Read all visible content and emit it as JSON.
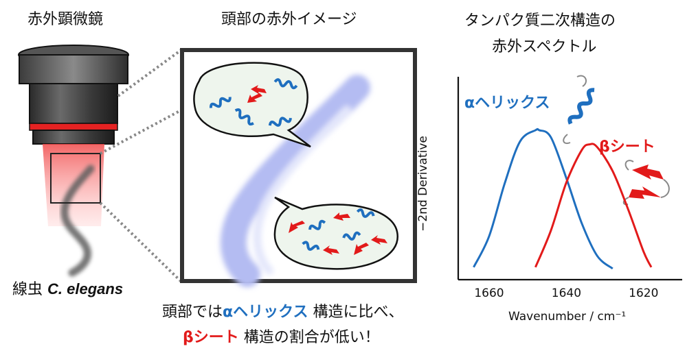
{
  "microscope": {
    "title": "赤外顕微鏡",
    "worm_label_prefix": "線虫",
    "worm_label_species": "C. elegans"
  },
  "head_image": {
    "title": "頭部の赤外イメージ"
  },
  "caption": {
    "line1_prefix": "頭部では",
    "line1_helix": "αヘリックス",
    "line1_suffix": " 構造に比べ、",
    "line2_sheet": "βシート",
    "line2_suffix": " 構造の割合が低い！"
  },
  "spectrum_panel": {
    "title_line1": "タンパク質二次構造の",
    "title_line2": "赤外スペクトル",
    "helix_label": "αヘリックス",
    "sheet_label": "βシート"
  },
  "colors": {
    "helix": "#1f6fbf",
    "sheet": "#e21a1a",
    "worm_ir": "#a9b2f0"
  },
  "chart_data": {
    "type": "line",
    "xlabel": "Wavenumber / cm⁻¹",
    "ylabel": "−2nd Derivative",
    "x_ticks": [
      "1660",
      "1640",
      "1620"
    ],
    "xlim": [
      1668,
      1610
    ],
    "series": [
      {
        "name": "αヘリックス",
        "color": "#1f6fbf",
        "x": [
          1664,
          1660,
          1656,
          1652,
          1648,
          1647,
          1644,
          1640,
          1636,
          1632,
          1628
        ],
        "y": [
          0.03,
          0.25,
          0.62,
          0.92,
          1.0,
          1.0,
          0.95,
          0.66,
          0.34,
          0.11,
          0.02
        ]
      },
      {
        "name": "βシート",
        "color": "#e21a1a",
        "x": [
          1648,
          1644,
          1640,
          1636,
          1634,
          1632,
          1628,
          1624,
          1620,
          1618
        ],
        "y": [
          0.03,
          0.29,
          0.63,
          0.86,
          0.9,
          0.88,
          0.71,
          0.44,
          0.14,
          0.03
        ]
      }
    ]
  }
}
